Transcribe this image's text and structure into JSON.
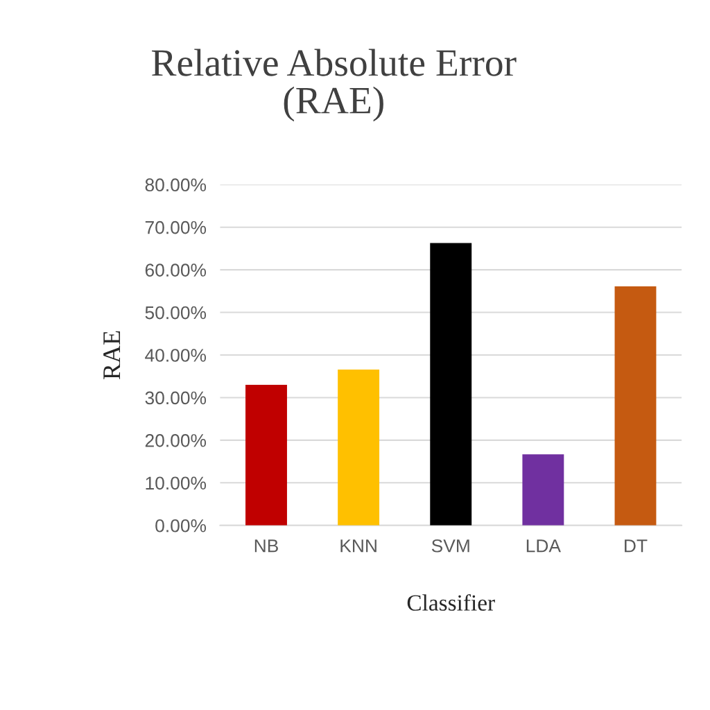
{
  "chart_data": {
    "type": "bar",
    "title": "Relative Absolute Error\n(RAE)",
    "xlabel": "Classifier",
    "ylabel": "RAE",
    "categories": [
      "NB",
      "KNN",
      "SVM",
      "LDA",
      "DT"
    ],
    "values": [
      33.0,
      36.6,
      66.3,
      16.7,
      56.1
    ],
    "colors": [
      "#c00000",
      "#ffc000",
      "#000000",
      "#7030a0",
      "#c55a11"
    ],
    "ylim": [
      0,
      80
    ],
    "yticks": [
      {
        "value": 0,
        "label": "0.00%"
      },
      {
        "value": 10,
        "label": "10.00%"
      },
      {
        "value": 20,
        "label": "20.00%"
      },
      {
        "value": 30,
        "label": "30.00%"
      },
      {
        "value": 40,
        "label": "40.00%"
      },
      {
        "value": 50,
        "label": "50.00%"
      },
      {
        "value": 60,
        "label": "60.00%"
      },
      {
        "value": 70,
        "label": "70.00%"
      },
      {
        "value": 80,
        "label": "80.00%"
      }
    ],
    "grid": "y"
  }
}
